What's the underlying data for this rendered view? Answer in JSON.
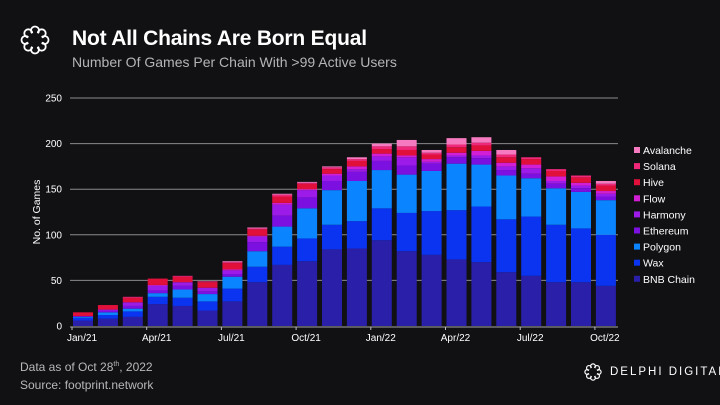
{
  "header": {
    "title": "Not All Chains Are Born Equal",
    "subtitle": "Number Of Games Per Chain With >99 Active Users",
    "logo_icon": "delphi-ring-logo-icon"
  },
  "footer": {
    "data_as_of_prefix": "Data as of Oct 28",
    "data_as_of_sup": "th",
    "data_as_of_suffix": ", 2022",
    "source": "Source: footprint.network"
  },
  "brand": {
    "name": "DELPHI DIGITAL",
    "icon": "delphi-ring-logo-icon"
  },
  "chart_data": {
    "type": "bar",
    "stacked": true,
    "title": "Not All Chains Are Born Equal",
    "subtitle": "Number Of Games Per Chain With >99 Active Users",
    "xlabel": "",
    "ylabel": "No. of Games",
    "ylim": [
      0,
      250
    ],
    "yticks": [
      0,
      50,
      100,
      150,
      200,
      250
    ],
    "grid": true,
    "legend_position": "right",
    "categories": [
      "Jan/21",
      "Feb/21",
      "Mar/21",
      "Apr/21",
      "May/21",
      "Jun/21",
      "Jul/21",
      "Aug/21",
      "Sep/21",
      "Oct/21",
      "Nov/21",
      "Dec/21",
      "Jan/22",
      "Feb/22",
      "Mar/22",
      "Apr/22",
      "May/22",
      "Jun/22",
      "Jul/22",
      "Aug/22",
      "Sep/22",
      "Oct/22"
    ],
    "xtick_labels": [
      "Jan/21",
      "Apr/21",
      "Jul/21",
      "Oct/21",
      "Jan/22",
      "Apr/22",
      "Jul/22",
      "Oct/22"
    ],
    "series": [
      {
        "name": "BNB Chain",
        "color": "#2a1fa8",
        "values": [
          6,
          8,
          10,
          24,
          22,
          17,
          27,
          48,
          67,
          71,
          84,
          85,
          94,
          82,
          78,
          73,
          70,
          59,
          55,
          48,
          48,
          44
        ]
      },
      {
        "name": "Wax",
        "color": "#0b34f0",
        "values": [
          3,
          4,
          6,
          8,
          9,
          10,
          14,
          17,
          20,
          25,
          27,
          30,
          35,
          42,
          48,
          54,
          61,
          58,
          65,
          63,
          59,
          56
        ]
      },
      {
        "name": "Polygon",
        "color": "#0a84ff",
        "values": [
          1,
          3,
          3,
          4,
          9,
          8,
          13,
          17,
          22,
          33,
          38,
          44,
          42,
          42,
          44,
          51,
          46,
          48,
          42,
          40,
          40,
          38
        ]
      },
      {
        "name": "Ethereum",
        "color": "#7b10e0",
        "values": [
          1,
          2,
          3,
          3,
          4,
          3,
          3,
          10,
          12,
          12,
          10,
          10,
          10,
          10,
          8,
          7,
          7,
          6,
          5,
          5,
          4,
          4
        ]
      },
      {
        "name": "Harmony",
        "color": "#9d1be8",
        "values": [
          0,
          1,
          4,
          5,
          4,
          4,
          4,
          6,
          12,
          8,
          6,
          3,
          5,
          9,
          2,
          2,
          3,
          4,
          6,
          3,
          3,
          3
        ]
      },
      {
        "name": "Flow",
        "color": "#d21fd6",
        "values": [
          0,
          0,
          0,
          1,
          0,
          0,
          1,
          1,
          2,
          1,
          2,
          3,
          3,
          2,
          3,
          3,
          5,
          4,
          4,
          5,
          3,
          3
        ]
      },
      {
        "name": "Hive",
        "color": "#e0103a",
        "values": [
          4,
          5,
          5,
          7,
          6,
          6,
          7,
          7,
          7,
          6,
          5,
          6,
          5,
          6,
          5,
          6,
          6,
          6,
          6,
          6,
          6,
          6
        ]
      },
      {
        "name": "Solana",
        "color": "#f0287a",
        "values": [
          0,
          0,
          1,
          0,
          1,
          1,
          1,
          1,
          2,
          1,
          2,
          2,
          3,
          4,
          2,
          3,
          3,
          3,
          2,
          2,
          2,
          2
        ]
      },
      {
        "name": "Avalanche",
        "color": "#f57ac0",
        "values": [
          0,
          0,
          0,
          0,
          0,
          0,
          1,
          1,
          1,
          1,
          1,
          2,
          3,
          7,
          3,
          7,
          6,
          5,
          0,
          0,
          0,
          3
        ]
      }
    ]
  }
}
